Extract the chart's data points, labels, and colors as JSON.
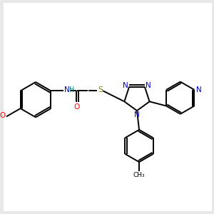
{
  "bg_color": "#e8e8e8",
  "bond_color": "#000000",
  "atom_colors": {
    "N": "#0000cd",
    "O": "#ff0000",
    "S": "#808000",
    "H": "#008b8b",
    "C": "#000000"
  },
  "figsize": [
    3.0,
    3.0
  ],
  "dpi": 100,
  "white_bg": [
    8,
    8,
    284,
    284
  ]
}
